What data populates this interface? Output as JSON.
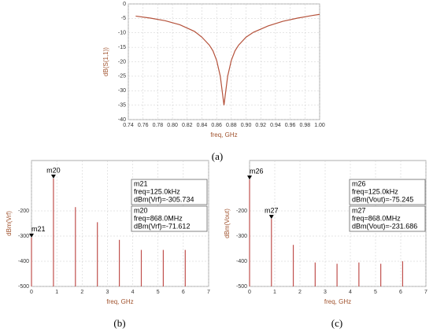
{
  "chart_data": [
    {
      "type": "line",
      "label": "(a)",
      "xlabel": "freq, GHz",
      "ylabel": "dB(S(1,1))",
      "color": "#b5523b",
      "grid": true,
      "x": [
        0.75,
        0.77,
        0.79,
        0.81,
        0.83,
        0.84,
        0.85,
        0.855,
        0.86,
        0.865,
        0.87,
        0.875,
        0.88,
        0.885,
        0.89,
        0.9,
        0.91,
        0.93,
        0.95,
        0.97,
        0.99,
        1.0
      ],
      "values": [
        -4.2,
        -4.9,
        -5.8,
        -7.2,
        -9.5,
        -11.5,
        -14.2,
        -16.2,
        -19.5,
        -25,
        -35,
        -25,
        -19.5,
        -16.2,
        -14.2,
        -11.5,
        -9.8,
        -7.6,
        -6,
        -4.9,
        -4,
        -3.6
      ],
      "xlim": [
        0.74,
        1
      ],
      "xticks": [
        0.74,
        0.76,
        0.78,
        {
          "value": 0.8,
          "label": "0.80"
        },
        0.82,
        0.84,
        0.86,
        0.88,
        {
          "value": 0.9,
          "label": "0.90"
        },
        0.92,
        0.94,
        0.96,
        0.98,
        {
          "value": 1,
          "label": "1.00"
        }
      ],
      "ylim": [
        -40,
        0
      ],
      "yticks": [
        -40,
        -35,
        -30,
        -25,
        -20,
        -15,
        -10,
        -5,
        0
      ]
    },
    {
      "type": "stem",
      "label": "(b)",
      "xlabel": "freq, GHz",
      "ylabel": "dBm(Vrf)",
      "color": "#c0504d",
      "grid": true,
      "x": [
        0.000125,
        0.868,
        1.736,
        2.604,
        3.472,
        4.34,
        5.208,
        6.076
      ],
      "values": [
        -305.734,
        -71.612,
        -185,
        -245,
        -315,
        -355,
        -355,
        -355
      ],
      "xlim": [
        0,
        7
      ],
      "xticks": [
        0,
        1,
        2,
        3,
        4,
        5,
        6,
        7
      ],
      "ylim": [
        -500,
        0
      ],
      "yticks": [
        -500,
        -400,
        -300,
        -200
      ],
      "markers": [
        {
          "name": "m21",
          "lines": [
            "freq=125.0kHz",
            "dBm(Vrf)=-305.734"
          ]
        },
        {
          "name": "m20",
          "lines": [
            "freq=868.0MHz",
            "dBm(Vrf)=-71.612"
          ]
        }
      ]
    },
    {
      "type": "stem",
      "label": "(c)",
      "xlabel": "freq, GHz",
      "ylabel": "dBm(Vout)",
      "color": "#c0504d",
      "grid": true,
      "x": [
        0.000125,
        0.868,
        1.736,
        2.604,
        3.472,
        4.34,
        5.208,
        6.076
      ],
      "values": [
        -75.245,
        -231.686,
        -335,
        -405,
        -410,
        -405,
        -410,
        -400
      ],
      "xlim": [
        0,
        7
      ],
      "xticks": [
        0,
        1,
        2,
        3,
        4,
        5,
        6,
        7
      ],
      "ylim": [
        -500,
        0
      ],
      "yticks": [
        -500,
        -400,
        -300,
        -200
      ],
      "markers": [
        {
          "name": "m26",
          "lines": [
            "freq=125.0kHz",
            "dBm(Vout)=-75.245"
          ]
        },
        {
          "name": "m27",
          "lines": [
            "freq=868.0MHz",
            "dBm(Vout)=-231.686"
          ]
        }
      ]
    }
  ]
}
